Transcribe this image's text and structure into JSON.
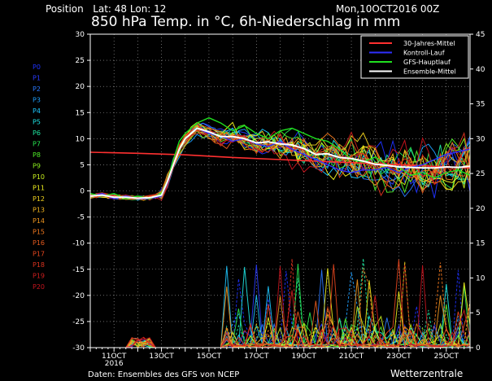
{
  "header": {
    "position_label": "Position",
    "lat_lon": "Lat: 48 Lon: 12",
    "title": "850 hPa Temp. in °C, 6h-Niederschlag in mm",
    "run_time": "Mon,10OCT2016 00Z"
  },
  "footer": {
    "source": "Daten: Ensembles des GFS von NCEP",
    "brand": "Wetterzentrale"
  },
  "ensemble_members": [
    {
      "label": "P0",
      "color": "#1e32ff"
    },
    {
      "label": "P1",
      "color": "#2a3cff"
    },
    {
      "label": "P2",
      "color": "#2a78ff"
    },
    {
      "label": "P3",
      "color": "#1ea0ff"
    },
    {
      "label": "P4",
      "color": "#1ec8ff"
    },
    {
      "label": "P5",
      "color": "#1ee6e6"
    },
    {
      "label": "P6",
      "color": "#1ee6a0"
    },
    {
      "label": "P7",
      "color": "#28e650"
    },
    {
      "label": "P8",
      "color": "#50f028"
    },
    {
      "label": "P9",
      "color": "#8cf01e"
    },
    {
      "label": "P10",
      "color": "#c8f01e"
    },
    {
      "label": "P11",
      "color": "#f0f01e"
    },
    {
      "label": "P12",
      "color": "#f0d21e"
    },
    {
      "label": "P13",
      "color": "#f0b41e"
    },
    {
      "label": "P14",
      "color": "#f0961e"
    },
    {
      "label": "P15",
      "color": "#f0781e"
    },
    {
      "label": "P16",
      "color": "#e65a1e"
    },
    {
      "label": "P17",
      "color": "#e6461e"
    },
    {
      "label": "P18",
      "color": "#dc321e"
    },
    {
      "label": "P19",
      "color": "#d21e1e"
    },
    {
      "label": "P20",
      "color": "#c8141e"
    }
  ],
  "chart_data": {
    "type": "line",
    "title": "850 hPa Temp. in °C, 6h-Niederschlag in mm",
    "x_ticks": [
      {
        "day": 1,
        "label": "11OCT",
        "sub": "2016"
      },
      {
        "day": 3,
        "label": "13OCT"
      },
      {
        "day": 5,
        "label": "15OCT"
      },
      {
        "day": 7,
        "label": "17OCT"
      },
      {
        "day": 9,
        "label": "19OCT"
      },
      {
        "day": 11,
        "label": "21OCT"
      },
      {
        "day": 13,
        "label": "23OCT"
      },
      {
        "day": 15,
        "label": "25OCT"
      }
    ],
    "xlim": [
      0,
      16
    ],
    "y_left": {
      "ticks": [
        30,
        25,
        20,
        15,
        10,
        5,
        0,
        -5,
        -10,
        -15,
        -20,
        -25,
        -30
      ],
      "lim": [
        -30,
        30
      ]
    },
    "y_right": {
      "ticks": [
        45,
        40,
        35,
        30,
        25,
        20,
        15,
        10,
        5,
        0
      ],
      "lim": [
        0,
        45
      ]
    },
    "grid": true,
    "legend_position": "top-right",
    "legend": [
      {
        "name": "30-Jahres-Mittel",
        "color": "#ff3030"
      },
      {
        "name": "Kontroll-Lauf",
        "color": "#3030ff"
      },
      {
        "name": "GFS-Hauptlauf",
        "color": "#20e020"
      },
      {
        "name": "Ensemble-Mittel",
        "color": "#ffffff"
      }
    ],
    "series": [
      {
        "name": "30-Jahres-Mittel",
        "color": "#ff3030",
        "width": 1.6,
        "x": [
          0,
          2,
          4,
          6,
          8,
          10,
          12,
          14,
          16
        ],
        "y": [
          7.4,
          7.2,
          6.9,
          6.4,
          6.0,
          5.6,
          5.2,
          4.8,
          4.4
        ]
      },
      {
        "name": "Kontroll-Lauf",
        "color": "#3030ff",
        "width": 1.4,
        "x": [
          0,
          0.5,
          1,
          1.5,
          2,
          2.5,
          3,
          3.25,
          3.5,
          3.75,
          4,
          4.25,
          4.5,
          5,
          5.5,
          6,
          6.5,
          7,
          7.5,
          8,
          8.5,
          9,
          9.5,
          10,
          10.5,
          11,
          11.5,
          12,
          12.5,
          13,
          13.5,
          14,
          14.5,
          15,
          15.5,
          16
        ],
        "y": [
          -1.0,
          -0.5,
          -1.5,
          -1.0,
          -1.5,
          -1.5,
          -1.0,
          1.5,
          5.0,
          8.0,
          10.0,
          11.0,
          12.0,
          11.0,
          10.5,
          9.5,
          10.0,
          9.0,
          8.5,
          9.5,
          8.0,
          7.0,
          6.0,
          5.0,
          4.0,
          3.5,
          4.0,
          4.0,
          4.5,
          3.5,
          4.5,
          5.0,
          6.0,
          7.0,
          7.5,
          8.0
        ]
      },
      {
        "name": "GFS-Hauptlauf",
        "color": "#20e020",
        "width": 1.4,
        "x": [
          0,
          0.5,
          1,
          1.5,
          2,
          2.5,
          3,
          3.25,
          3.5,
          3.75,
          4,
          4.25,
          4.5,
          5,
          5.5,
          6,
          6.5,
          7,
          7.5,
          8,
          8.5,
          9,
          9.5,
          10,
          10.5,
          11,
          11.5,
          12,
          12.5,
          13,
          13.5,
          14,
          14.5,
          15,
          15.5,
          16
        ],
        "y": [
          -0.5,
          -1.0,
          -0.5,
          -1.5,
          -1.0,
          -1.5,
          -0.5,
          2.0,
          6.0,
          9.5,
          11.0,
          12.0,
          13.0,
          14.0,
          13.0,
          11.5,
          12.5,
          11.0,
          10.0,
          11.5,
          12.0,
          11.0,
          10.0,
          9.5,
          8.0,
          6.0,
          5.5,
          6.5,
          5.0,
          4.5,
          3.0,
          3.5,
          2.5,
          3.5,
          4.0,
          3.0
        ]
      },
      {
        "name": "Ensemble-Mittel",
        "color": "#ffffff",
        "width": 2.0,
        "x": [
          0,
          0.5,
          1,
          1.5,
          2,
          2.5,
          3,
          3.25,
          3.5,
          3.75,
          4,
          4.25,
          4.5,
          5,
          5.5,
          6,
          6.5,
          7,
          7.5,
          8,
          8.5,
          9,
          9.5,
          10,
          10.5,
          11,
          11.5,
          12,
          12.5,
          13,
          13.5,
          14,
          14.5,
          15,
          15.5,
          16
        ],
        "y": [
          -1.0,
          -0.8,
          -1.2,
          -1.2,
          -1.4,
          -1.3,
          -0.8,
          1.8,
          5.0,
          8.0,
          10.0,
          11.0,
          12.0,
          11.3,
          10.4,
          10.4,
          10.0,
          9.2,
          9.4,
          9.0,
          8.8,
          8.1,
          7.0,
          7.1,
          6.4,
          6.2,
          5.7,
          5.1,
          4.9,
          4.6,
          4.5,
          4.4,
          4.4,
          4.6,
          4.5,
          4.7
        ]
      }
    ]
  }
}
